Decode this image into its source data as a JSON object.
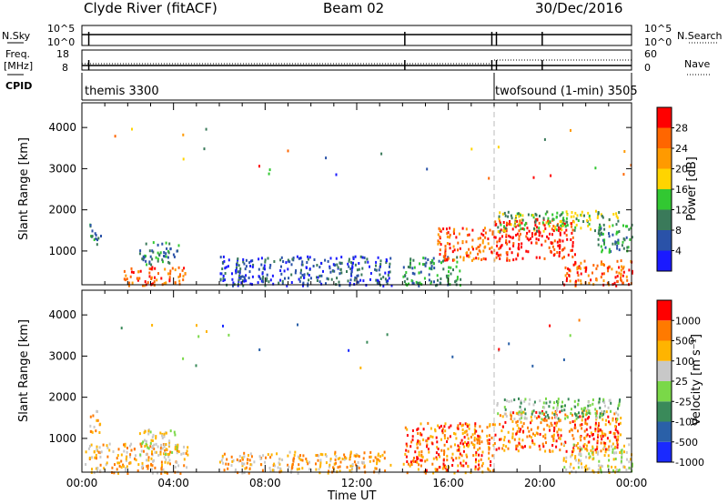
{
  "header": {
    "station": "Clyde River (fitACF)",
    "beam": "Beam 02",
    "date": "30/Dec/2016"
  },
  "chart_data": [
    {
      "type": "line",
      "panel": "noise",
      "left_label": "N.Sky",
      "right_label": "N.Search",
      "left_ticks": [
        "10^5",
        "10^0"
      ],
      "right_ticks": [
        "10^5",
        "10^0"
      ]
    },
    {
      "type": "line",
      "panel": "frequency",
      "left_label_top": "Freq.",
      "left_label_bottom": "[MHz]",
      "right_label": "Nave",
      "left_ticks": [
        "18",
        "8"
      ],
      "right_ticks": [
        "60",
        "0"
      ],
      "mode_change_time": 18.0
    },
    {
      "type": "table",
      "panel": "cpid",
      "label": "CPID",
      "segments": [
        {
          "name": "themis 3300",
          "start": 0,
          "end": 18
        },
        {
          "name": "twofsound (1-min) 3505",
          "start": 18,
          "end": 24
        }
      ]
    },
    {
      "type": "heatmap",
      "panel": "power",
      "ylabel": "Slant Range [km]",
      "ylim": [
        180,
        4600
      ],
      "yticks": [
        1000,
        2000,
        3000,
        4000
      ],
      "colorbar_label": "Power [dB]",
      "colorbar_ticks": [
        "28",
        "24",
        "20",
        "16",
        "12",
        "8",
        "4"
      ],
      "colors": [
        "#1a1aff",
        "#2a52a8",
        "#3a7a5a",
        "#32c832",
        "#ffd400",
        "#ff9a00",
        "#ff6600",
        "#ff0000"
      ],
      "blobs": [
        {
          "t0": 0.3,
          "t1": 0.8,
          "r0": 1150,
          "r1": 1700,
          "level": 2
        },
        {
          "t0": 1.8,
          "t1": 4.5,
          "r0": 180,
          "r1": 650,
          "level": 6
        },
        {
          "t0": 2.5,
          "t1": 4.2,
          "r0": 700,
          "r1": 1250,
          "level": 2
        },
        {
          "t0": 6.0,
          "t1": 13.5,
          "r0": 180,
          "r1": 900,
          "level": 1
        },
        {
          "t0": 14.0,
          "t1": 16.5,
          "r0": 180,
          "r1": 900,
          "level": 2
        },
        {
          "t0": 15.5,
          "t1": 18.0,
          "r0": 800,
          "r1": 1600,
          "level": 6
        },
        {
          "t0": 18.0,
          "t1": 21.5,
          "r0": 800,
          "r1": 1800,
          "level": 7
        },
        {
          "t0": 18.0,
          "t1": 23.5,
          "r0": 1500,
          "r1": 2000,
          "level": 3
        },
        {
          "t0": 21.0,
          "t1": 24.0,
          "r0": 180,
          "r1": 800,
          "level": 6
        },
        {
          "t0": 22.5,
          "t1": 24.0,
          "r0": 1000,
          "r1": 1700,
          "level": 2
        }
      ]
    },
    {
      "type": "heatmap",
      "panel": "velocity",
      "ylabel": "Slant Range [km]",
      "ylim": [
        180,
        4600
      ],
      "yticks": [
        1000,
        2000,
        3000,
        4000
      ],
      "xlabel": "Time UT",
      "xticks": [
        "00:00",
        "04:00",
        "08:00",
        "12:00",
        "16:00",
        "20:00",
        "00:00"
      ],
      "colorbar_label": "Velocity [m s⁻¹]",
      "colorbar_ticks": [
        "1000",
        "500",
        "100",
        "25",
        "-25",
        "-100",
        "-500",
        "-1000"
      ],
      "colors": [
        "#1a2aff",
        "#2a60a8",
        "#3a8a5a",
        "#7ad848",
        "#c8c8c8",
        "#ffb400",
        "#ff7a00",
        "#ff0000"
      ],
      "blobs": [
        {
          "t0": 0.3,
          "t1": 0.8,
          "r0": 1150,
          "r1": 1700,
          "level": 5
        },
        {
          "t0": 0.1,
          "t1": 4.6,
          "r0": 180,
          "r1": 900,
          "level": 5
        },
        {
          "t0": 2.5,
          "t1": 4.2,
          "r0": 600,
          "r1": 1250,
          "level": 4
        },
        {
          "t0": 6.0,
          "t1": 13.5,
          "r0": 180,
          "r1": 700,
          "level": 5
        },
        {
          "t0": 14.0,
          "t1": 18.0,
          "r0": 180,
          "r1": 1400,
          "level": 6
        },
        {
          "t0": 18.0,
          "t1": 23.5,
          "r0": 700,
          "r1": 1700,
          "level": 6
        },
        {
          "t0": 18.0,
          "t1": 23.5,
          "r0": 1500,
          "r1": 2000,
          "level": 3
        },
        {
          "t0": 21.0,
          "t1": 24.0,
          "r0": 180,
          "r1": 900,
          "level": 4
        }
      ]
    }
  ]
}
